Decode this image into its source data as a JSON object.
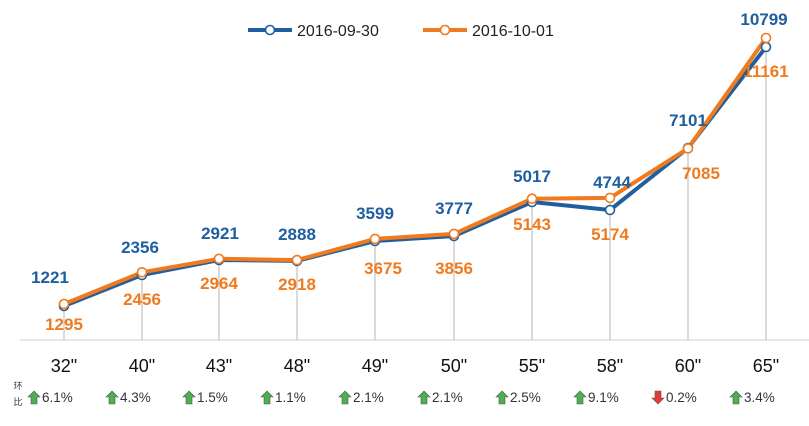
{
  "chart_data": {
    "type": "line",
    "categories": [
      "32\"",
      "40\"",
      "43\"",
      "48\"",
      "49\"",
      "50\"",
      "55\"",
      "58\"",
      "60\"",
      "65\""
    ],
    "series": [
      {
        "name": "2016-09-30",
        "color": "#1f5fa0",
        "values": [
          1221,
          2356,
          2921,
          2888,
          3599,
          3777,
          5017,
          4744,
          7101,
          10799
        ]
      },
      {
        "name": "2016-10-01",
        "color": "#f07a1e",
        "values": [
          1295,
          2456,
          2964,
          2918,
          3675,
          3856,
          5143,
          5174,
          7085,
          11161
        ]
      }
    ],
    "legend_position": "top-center",
    "grid": false,
    "change_row_label": "环比",
    "changes": [
      {
        "text": "6.1%",
        "direction": "up"
      },
      {
        "text": "4.3%",
        "direction": "up"
      },
      {
        "text": "1.5%",
        "direction": "up"
      },
      {
        "text": "1.1%",
        "direction": "up"
      },
      {
        "text": "2.1%",
        "direction": "up"
      },
      {
        "text": "2.1%",
        "direction": "up"
      },
      {
        "text": "2.5%",
        "direction": "up"
      },
      {
        "text": "9.1%",
        "direction": "up"
      },
      {
        "text": "0.2%",
        "direction": "down"
      },
      {
        "text": "3.4%",
        "direction": "up"
      }
    ],
    "up_color": "#4caf50",
    "down_color": "#e53935"
  }
}
